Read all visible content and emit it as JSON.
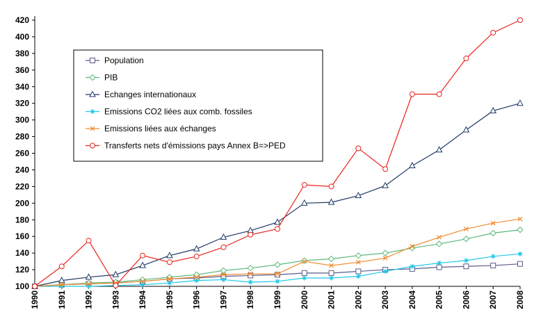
{
  "chart_data": {
    "type": "line",
    "title": "",
    "xlabel": "",
    "ylabel": "",
    "ylim": [
      100,
      420
    ],
    "y_ticks": [
      100,
      120,
      140,
      160,
      180,
      200,
      220,
      240,
      260,
      280,
      300,
      320,
      340,
      360,
      380,
      400,
      420
    ],
    "x": [
      "1990",
      "1991",
      "1992",
      "1993",
      "1994",
      "1995",
      "1996",
      "1997",
      "1998",
      "1999",
      "2000",
      "2001",
      "2002",
      "2003",
      "2004",
      "2005",
      "2006",
      "2007",
      "2008"
    ],
    "grid": false,
    "legend_position": "top-left",
    "series": [
      {
        "name": "Population",
        "color": "#5a5a8c",
        "marker": "square",
        "values": [
          100,
          102,
          103,
          104,
          106,
          109,
          110,
          112,
          113,
          114,
          116,
          116,
          118,
          120,
          121,
          123,
          124,
          125,
          127
        ]
      },
      {
        "name": "PIB",
        "color": "#5cb87a",
        "marker": "diamond",
        "values": [
          100,
          102,
          104,
          105,
          108,
          111,
          114,
          119,
          122,
          126,
          131,
          133,
          137,
          140,
          146,
          151,
          157,
          164,
          168
        ]
      },
      {
        "name": "Echanges internationaux",
        "color": "#1f3864",
        "marker": "triangle",
        "values": [
          100,
          107,
          111,
          114,
          125,
          137,
          145,
          159,
          167,
          177,
          200,
          201,
          209,
          221,
          245,
          264,
          288,
          311,
          320
        ]
      },
      {
        "name": "Emissions CO2 liées aux comb. fossiles",
        "color": "#1fc8e8",
        "marker": "star",
        "values": [
          100,
          100,
          100,
          101,
          102,
          104,
          107,
          108,
          105,
          106,
          110,
          110,
          112,
          118,
          124,
          128,
          131,
          136,
          139
        ]
      },
      {
        "name": "Emissions liées aux échanges",
        "color": "#f08a2a",
        "marker": "x",
        "values": [
          100,
          102,
          103,
          104,
          106,
          109,
          111,
          114,
          115,
          115,
          130,
          125,
          129,
          134,
          148,
          159,
          169,
          176,
          181
        ]
      },
      {
        "name": "Transferts nets d'émissions pays Annex B=>PED",
        "color": "#e8231c",
        "marker": "circle",
        "values": [
          100,
          124,
          155,
          101,
          137,
          129,
          136,
          147,
          162,
          169,
          222,
          220,
          266,
          241,
          331,
          331,
          374,
          405,
          420
        ]
      }
    ]
  }
}
